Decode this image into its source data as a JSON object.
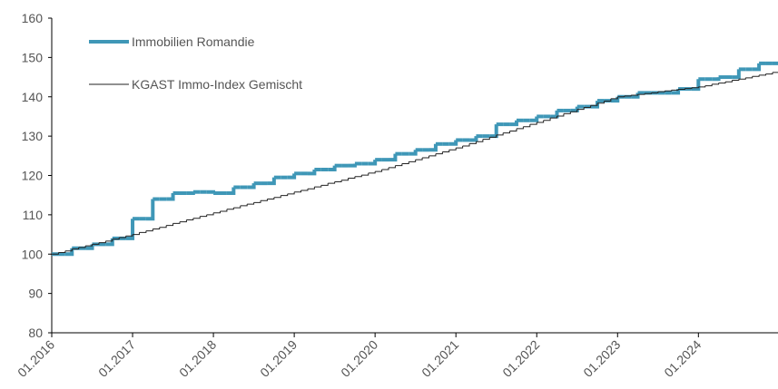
{
  "chart_data": {
    "type": "step-line",
    "categories": [
      "01.2016",
      null,
      null,
      null,
      null,
      null,
      null,
      null,
      null,
      null,
      null,
      null,
      "01.2017",
      null,
      null,
      null,
      null,
      null,
      null,
      null,
      null,
      null,
      null,
      null,
      "01.2018",
      null,
      null,
      null,
      null,
      null,
      null,
      null,
      null,
      null,
      null,
      null,
      "01.2019",
      null,
      null,
      null,
      null,
      null,
      null,
      null,
      null,
      null,
      null,
      null,
      "01.2020",
      null,
      null,
      null,
      null,
      null,
      null,
      null,
      null,
      null,
      null,
      null,
      "01.2021",
      null,
      null,
      null,
      null,
      null,
      null,
      null,
      null,
      null,
      null,
      null,
      "01.2022",
      null,
      null,
      null,
      null,
      null,
      null,
      null,
      null,
      null,
      null,
      null,
      "01.2023",
      null,
      null,
      null,
      null,
      null,
      null,
      null,
      null,
      null,
      null,
      null,
      "01.2024",
      null,
      null,
      null,
      null,
      null,
      null,
      null,
      null,
      null,
      null,
      null
    ],
    "series": [
      {
        "name": "Immobilien Romandie",
        "color": "#3f97b7",
        "width": 4,
        "values": [
          100,
          100,
          100,
          101.5,
          101.5,
          101.5,
          102.5,
          102.5,
          102.5,
          104,
          104,
          104,
          109,
          109,
          109,
          114,
          114,
          114,
          115.5,
          115.5,
          115.5,
          115.8,
          115.8,
          115.8,
          115.5,
          115.5,
          115.5,
          117,
          117,
          117,
          118,
          118,
          118,
          119.5,
          119.5,
          119.5,
          120.5,
          120.5,
          120.5,
          121.5,
          121.5,
          121.5,
          122.5,
          122.5,
          122.5,
          123,
          123,
          123,
          124,
          124,
          124,
          125.5,
          125.5,
          125.5,
          126.5,
          126.5,
          126.5,
          128,
          128,
          128,
          129,
          129,
          129,
          130,
          130,
          130,
          133,
          133,
          133,
          134,
          134,
          134,
          135,
          135,
          135,
          136.5,
          136.5,
          136.5,
          137.5,
          137.5,
          137.5,
          139,
          139,
          139,
          140,
          140,
          140,
          141,
          141,
          141,
          141,
          141,
          141,
          142,
          142,
          142,
          144.5,
          144.5,
          144.5,
          145,
          145,
          145,
          147,
          147,
          147,
          148.5,
          148.5,
          148.5
        ]
      },
      {
        "name": "KGAST Immo-Index Gemischt",
        "color": "#222222",
        "width": 1,
        "values": [
          100,
          100.4,
          100.8,
          101.3,
          101.7,
          102.1,
          102.5,
          102.9,
          103.3,
          103.8,
          104.2,
          104.6,
          105,
          105.5,
          105.9,
          106.4,
          106.8,
          107.3,
          107.8,
          108.2,
          108.7,
          109.1,
          109.6,
          110,
          110.5,
          110.9,
          111.4,
          111.8,
          112.3,
          112.7,
          113.1,
          113.6,
          114,
          114.4,
          114.9,
          115.3,
          115.8,
          116.2,
          116.6,
          117.1,
          117.5,
          118,
          118.4,
          118.8,
          119.3,
          119.7,
          120.1,
          120.6,
          121,
          121.5,
          122,
          122.5,
          123,
          123.5,
          124,
          124.5,
          125,
          125.5,
          126,
          126.5,
          127,
          127.5,
          128.1,
          128.6,
          129.2,
          129.7,
          130.3,
          130.8,
          131.3,
          131.9,
          132.4,
          133,
          133.5,
          134,
          134.6,
          135.1,
          135.7,
          136.2,
          136.8,
          137.3,
          137.8,
          138.4,
          138.9,
          139.5,
          140,
          140.2,
          140.4,
          140.6,
          140.8,
          141,
          141.3,
          141.5,
          141.7,
          141.9,
          142.1,
          142.3,
          142.5,
          142.8,
          143.2,
          143.5,
          143.8,
          144.2,
          144.5,
          144.8,
          145.2,
          145.5,
          145.8,
          146.2
        ]
      }
    ],
    "ylim": [
      80,
      160
    ],
    "yticks": [
      80,
      90,
      100,
      110,
      120,
      130,
      140,
      150,
      160
    ],
    "grid": false,
    "legend": "top-left"
  }
}
